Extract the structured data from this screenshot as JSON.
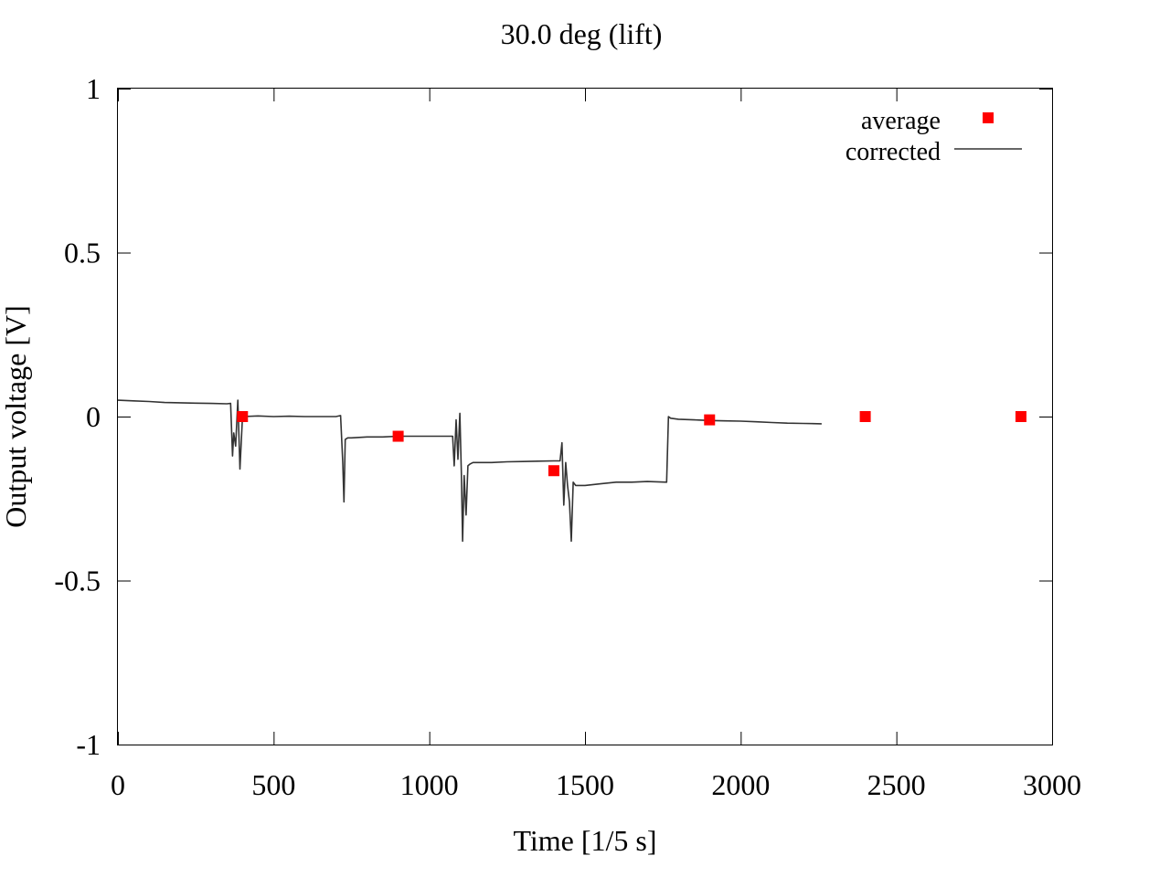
{
  "chart_data": {
    "type": "scatter",
    "title": "30.0 deg (lift)",
    "xlabel": "Time [1/5 s]",
    "ylabel": "Output voltage [V]",
    "xlim": [
      0,
      3000
    ],
    "ylim": [
      -1,
      1
    ],
    "xticks": [
      0,
      500,
      1000,
      1500,
      2000,
      2500,
      3000
    ],
    "xtick_labels": [
      "0",
      "500",
      "1000",
      "1500",
      "2000",
      "2500",
      "3000"
    ],
    "yticks": [
      1,
      0.5,
      0,
      -0.5,
      -1
    ],
    "ytick_labels": [
      "1",
      "0.5",
      "0",
      "-0.5",
      "-1"
    ],
    "grid": false,
    "legend_position": "top-right",
    "series": [
      {
        "name": "average",
        "kind": "points",
        "color": "#ff0000",
        "x": [
          400,
          900,
          1400,
          1900,
          2400,
          2900
        ],
        "y": [
          0.0,
          -0.06,
          -0.165,
          -0.01,
          0.0,
          0.0
        ]
      },
      {
        "name": "corrected",
        "kind": "line",
        "color": "#333333",
        "x": [
          0,
          50,
          100,
          150,
          200,
          250,
          300,
          350,
          362,
          368,
          372,
          378,
          385,
          392,
          400,
          450,
          500,
          550,
          600,
          650,
          700,
          715,
          722,
          726,
          730,
          738,
          750,
          800,
          850,
          900,
          950,
          1000,
          1050,
          1075,
          1080,
          1086,
          1092,
          1098,
          1103,
          1107,
          1112,
          1118,
          1124,
          1130,
          1140,
          1200,
          1250,
          1300,
          1350,
          1400,
          1420,
          1426,
          1432,
          1438,
          1444,
          1450,
          1456,
          1462,
          1470,
          1500,
          1550,
          1600,
          1650,
          1700,
          1762,
          1768,
          1775,
          1800,
          1850,
          1900,
          1950,
          2000,
          2050,
          2100,
          2150,
          2200,
          2260
        ],
        "y": [
          0.05,
          0.048,
          0.046,
          0.043,
          0.042,
          0.041,
          0.04,
          0.039,
          0.04,
          -0.12,
          -0.05,
          -0.09,
          0.05,
          -0.16,
          0.0,
          0.002,
          0.0,
          0.001,
          0.0,
          0.0,
          0.0,
          0.003,
          -0.14,
          -0.26,
          -0.07,
          -0.065,
          -0.065,
          -0.062,
          -0.062,
          -0.06,
          -0.06,
          -0.06,
          -0.06,
          -0.06,
          -0.15,
          -0.01,
          -0.13,
          0.01,
          -0.18,
          -0.38,
          -0.18,
          -0.3,
          -0.15,
          -0.145,
          -0.14,
          -0.14,
          -0.138,
          -0.137,
          -0.136,
          -0.135,
          -0.135,
          -0.08,
          -0.27,
          -0.14,
          -0.21,
          -0.26,
          -0.38,
          -0.2,
          -0.21,
          -0.21,
          -0.205,
          -0.2,
          -0.2,
          -0.198,
          -0.2,
          0.0,
          -0.005,
          -0.008,
          -0.01,
          -0.012,
          -0.013,
          -0.014,
          -0.016,
          -0.018,
          -0.02,
          -0.021,
          -0.022
        ]
      }
    ]
  }
}
